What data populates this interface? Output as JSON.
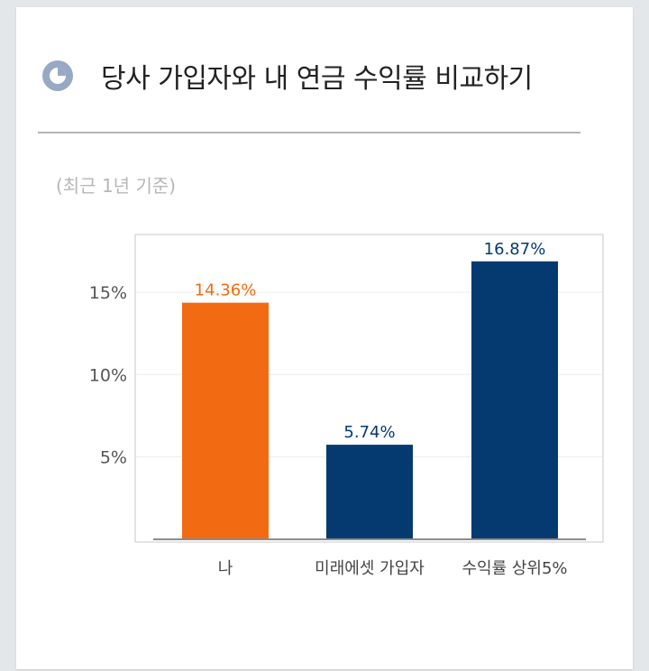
{
  "header": {
    "title": "당사 가입자와 내 연금 수익률 비교하기",
    "icon": "pie-chart-icon",
    "icon_color": "#98a9c4"
  },
  "subtitle": "(최근 1년 기준)",
  "chart_data": {
    "type": "bar",
    "categories": [
      "나",
      "미래에셋 가입자",
      "수익률 상위5%"
    ],
    "values": [
      14.36,
      5.74,
      16.87
    ],
    "data_labels": [
      "14.36%",
      "5.74%",
      "16.87%"
    ],
    "colors": [
      "#f26a12",
      "#043a70",
      "#043a70"
    ],
    "label_colors": [
      "#f26a12",
      "#043a70",
      "#043a70"
    ],
    "yticks": [
      "5%",
      "10%",
      "15%"
    ],
    "ytick_values": [
      5,
      10,
      15
    ],
    "ylim": [
      0,
      18.5
    ],
    "title": "",
    "xlabel": "",
    "ylabel": "",
    "grid": true
  }
}
